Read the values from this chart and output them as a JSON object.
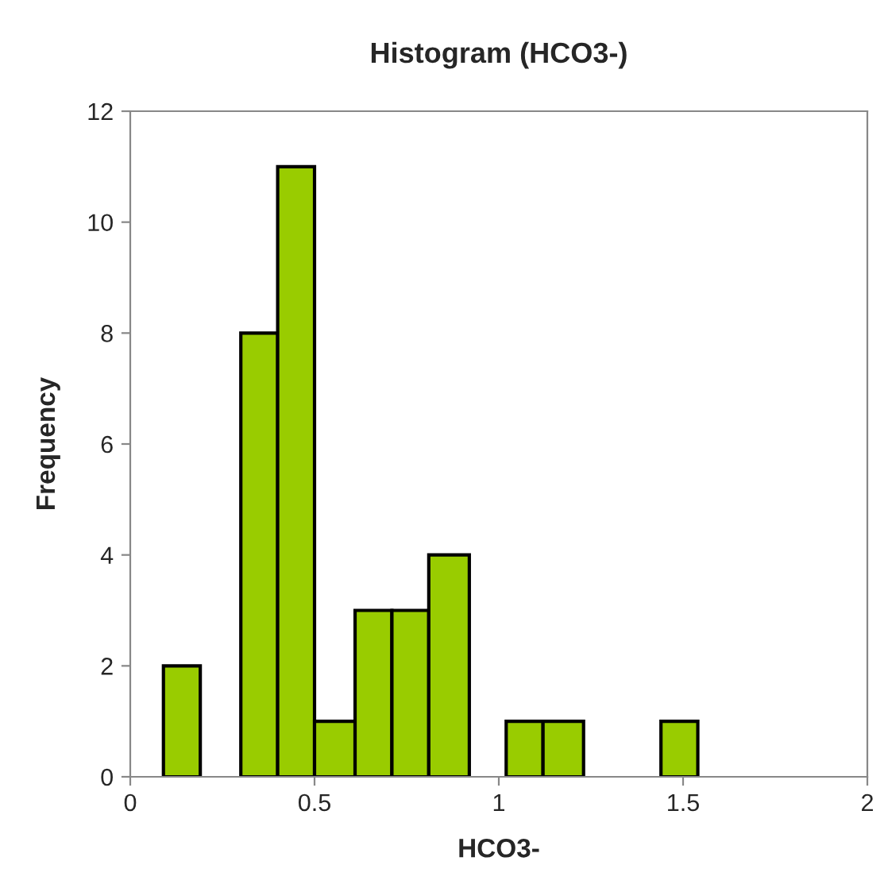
{
  "chart_data": {
    "type": "histogram",
    "title": "Histogram (HCO3-)",
    "xlabel": "HCO3-",
    "ylabel": "Frequency",
    "bins": [
      0.09,
      0.19,
      0.3,
      0.4,
      0.5,
      0.61,
      0.71,
      0.81,
      0.92,
      1.02,
      1.12,
      1.23,
      1.44,
      1.54
    ],
    "values": [
      2,
      0,
      8,
      11,
      1,
      3,
      3,
      4,
      0,
      1,
      1,
      0,
      1
    ],
    "color": "#99cc00",
    "xlim": [
      0,
      2
    ],
    "xticks": [
      0,
      0.5,
      1,
      1.5,
      2
    ],
    "ylim": [
      0,
      12
    ],
    "yticks": [
      0,
      2,
      4,
      6,
      8,
      10,
      12
    ],
    "grid": false
  }
}
